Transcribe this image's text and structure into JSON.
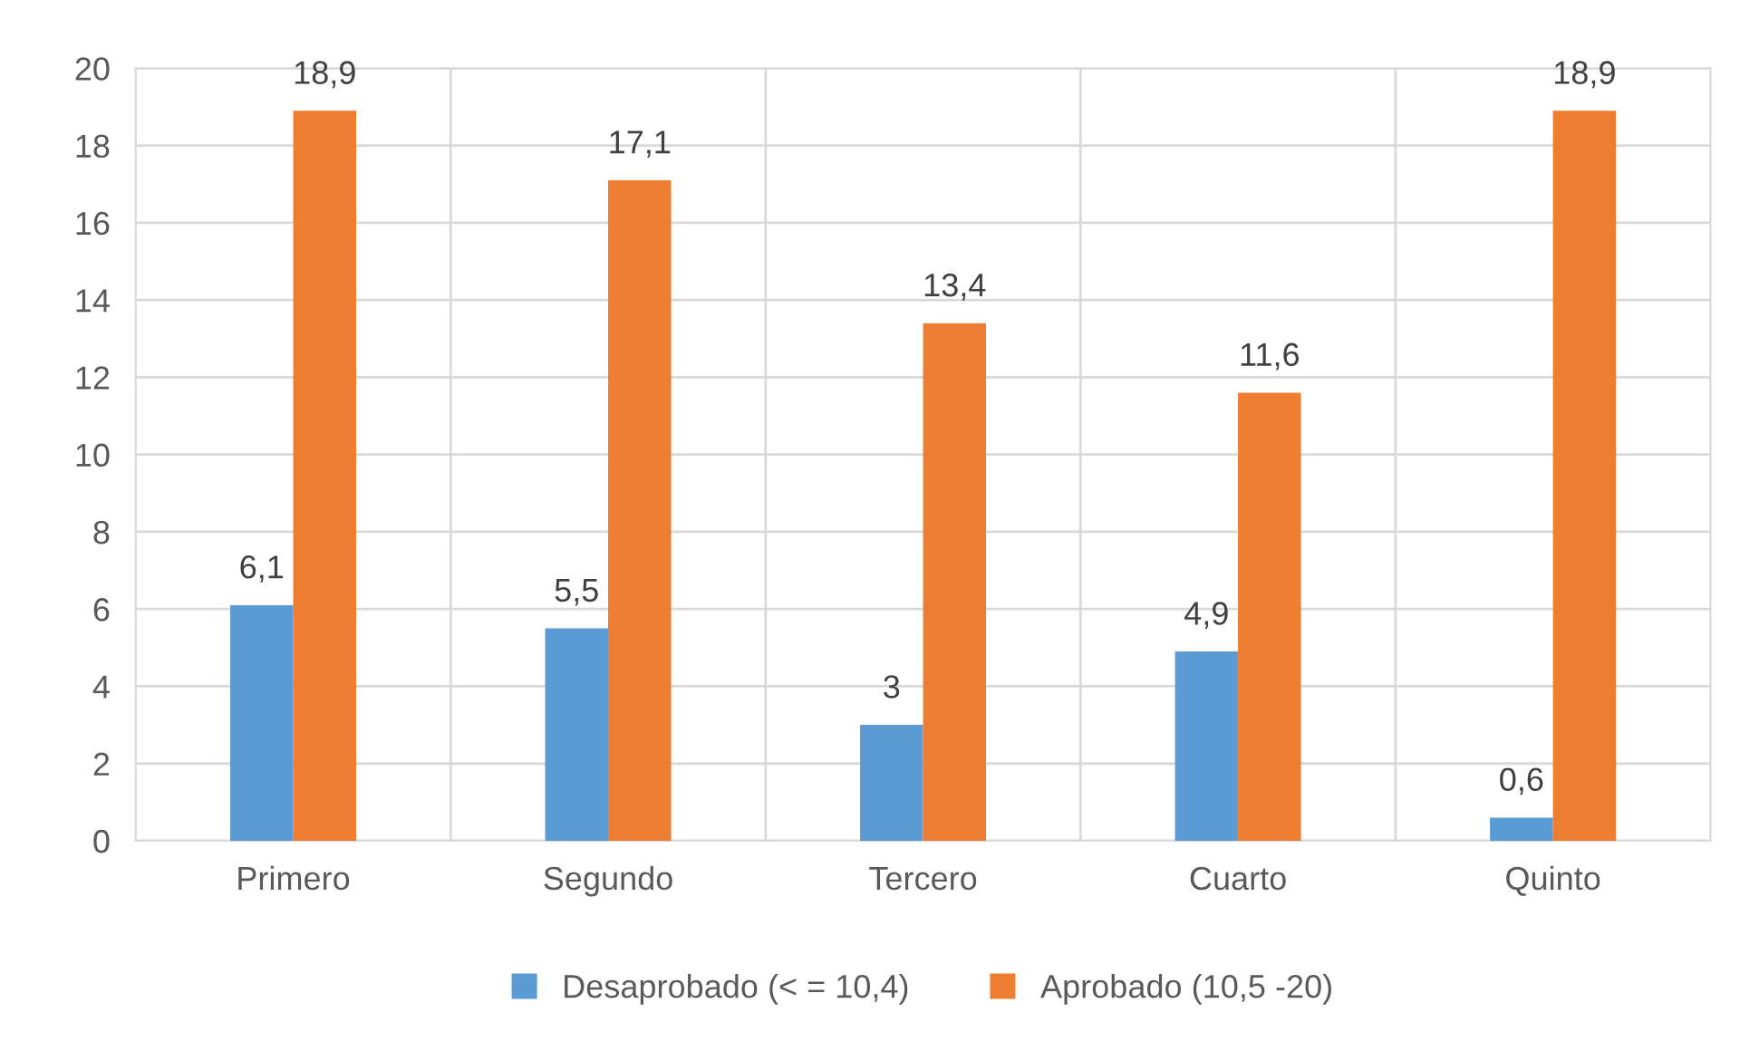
{
  "chart_data": {
    "type": "bar",
    "categories": [
      "Primero",
      "Segundo",
      "Tercero",
      "Cuarto",
      "Quinto"
    ],
    "series": [
      {
        "name": "Desaprobado (< = 10,4)",
        "color": "#5b9bd5",
        "values": [
          6.1,
          5.5,
          3,
          4.9,
          0.6
        ],
        "value_labels": [
          "6,1",
          "5,5",
          "3",
          "4,9",
          "0,6"
        ]
      },
      {
        "name": "Aprobado (10,5 -20)",
        "color": "#ed7d31",
        "values": [
          18.9,
          17.1,
          13.4,
          11.6,
          18.9
        ],
        "value_labels": [
          "18,9",
          "17,1",
          "13,4",
          "11,6",
          "18,9"
        ]
      }
    ],
    "ylim": [
      0,
      20
    ],
    "yticks": [
      0,
      2,
      4,
      6,
      8,
      10,
      12,
      14,
      16,
      18,
      20
    ],
    "grid": true,
    "legend": "bottom"
  }
}
